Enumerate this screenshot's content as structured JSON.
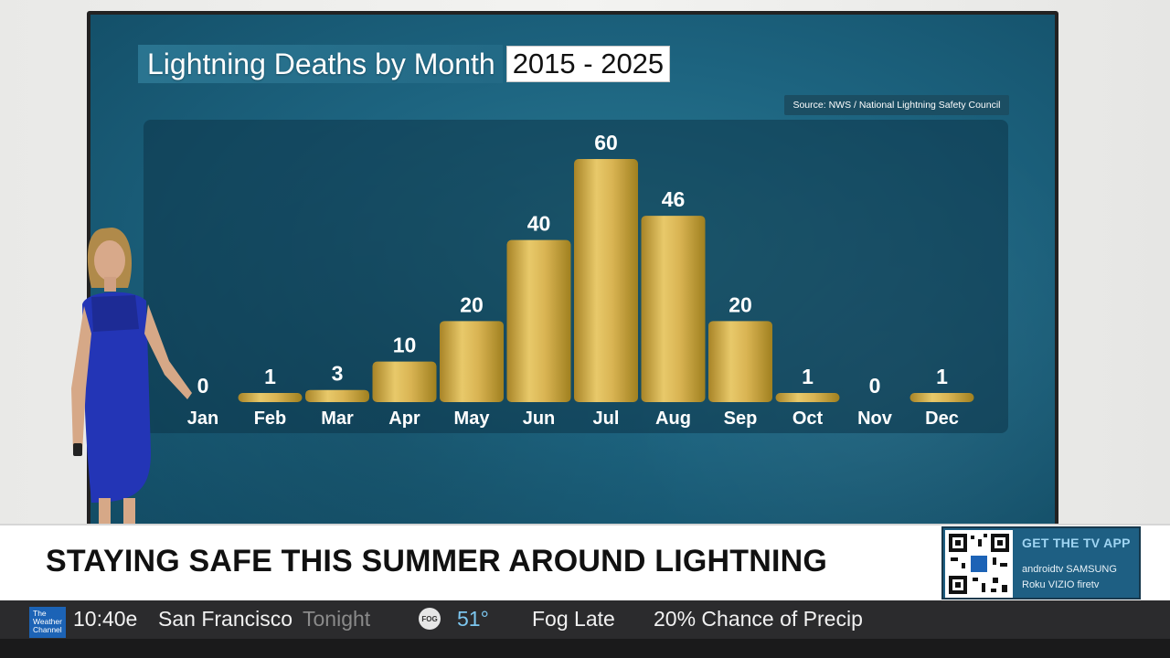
{
  "chart_data": {
    "type": "bar",
    "title": "Lightning Deaths by Month",
    "title_years": "2015 - 2025",
    "source": "Source: NWS / National Lightning Safety Council",
    "categories": [
      "Jan",
      "Feb",
      "Mar",
      "Apr",
      "May",
      "Jun",
      "Jul",
      "Aug",
      "Sep",
      "Oct",
      "Nov",
      "Dec"
    ],
    "values": [
      0,
      1,
      3,
      10,
      20,
      40,
      60,
      46,
      20,
      1,
      0,
      1
    ],
    "ylim": [
      0,
      60
    ],
    "grid": false,
    "bar_color": "#c9a33f"
  },
  "lower_third": {
    "headline": "STAYING SAFE THIS SUMMER AROUND LIGHTNING",
    "app_title": "GET THE TV APP",
    "platforms_line1": "androidtv  SAMSUNG",
    "platforms_line2": "Roku  VIZIO  firetv"
  },
  "ticker": {
    "logo_text": "The Weather Channel",
    "time": "10:40e",
    "city": "San Francisco",
    "period": "Tonight",
    "icon": "fog-icon",
    "icon_label": "FOG",
    "temperature": "51°",
    "condition": "Fog Late",
    "precip": "20% Chance of Precip"
  },
  "colors": {
    "screen": "#1d6480",
    "bar_gold": "#c9a33f",
    "ticker_bg": "#2b2b2d",
    "temp_blue": "#7cc6ef",
    "logo_blue": "#1c63b6"
  }
}
